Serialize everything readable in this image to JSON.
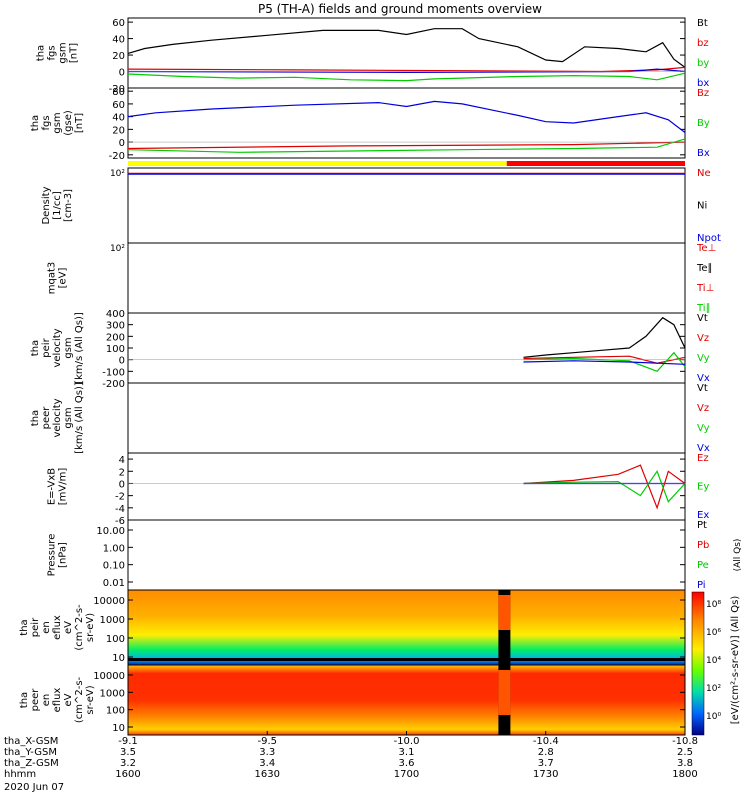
{
  "title": "P5 (TH-A) fields and ground moments overview",
  "colors": {
    "black": "#000000",
    "red": "#e00000",
    "green": "#00cc00",
    "blue": "#0000dd",
    "yellow": "#ffff00",
    "cbar_red": "#ff0000"
  },
  "chart_data": [
    {
      "type": "line",
      "panel": "fgs",
      "ylabel": [
        "tha",
        "fgs",
        "gsm",
        "[nT]"
      ],
      "yticks": [
        60,
        40,
        20,
        0,
        -20
      ],
      "ylim": [
        -20,
        65
      ],
      "legend": [
        {
          "label": "Bt",
          "color": "black"
        },
        {
          "label": "bz",
          "color": "red"
        },
        {
          "label": "by",
          "color": "green"
        },
        {
          "label": "bx",
          "color": "blue"
        }
      ],
      "series": [
        {
          "name": "Bt",
          "color": "black",
          "x": [
            0,
            0.03,
            0.08,
            0.15,
            0.25,
            0.35,
            0.45,
            0.5,
            0.55,
            0.6,
            0.63,
            0.7,
            0.75,
            0.78,
            0.82,
            0.88,
            0.93,
            0.96,
            0.98,
            1.0
          ],
          "values": [
            22,
            28,
            33,
            38,
            44,
            50,
            50,
            45,
            52,
            52,
            40,
            30,
            14,
            12,
            30,
            28,
            24,
            35,
            15,
            5
          ]
        },
        {
          "name": "bz",
          "color": "red",
          "x": [
            0,
            0.3,
            0.6,
            0.85,
            0.95,
            1.0
          ],
          "values": [
            3,
            2,
            1,
            0,
            2,
            5
          ]
        },
        {
          "name": "by",
          "color": "green",
          "x": [
            0,
            0.1,
            0.2,
            0.3,
            0.4,
            0.5,
            0.55,
            0.6,
            0.7,
            0.8,
            0.9,
            0.95,
            1.0
          ],
          "values": [
            -3,
            -6,
            -8,
            -7,
            -10,
            -11,
            -9,
            -8,
            -6,
            -5,
            -6,
            -10,
            -2
          ]
        },
        {
          "name": "bx",
          "color": "blue",
          "x": [
            0,
            0.5,
            0.9,
            0.95,
            1.0
          ],
          "values": [
            0,
            -1,
            0,
            3,
            0
          ]
        }
      ]
    },
    {
      "type": "line",
      "panel": "fgs-gse",
      "ylabel": [
        "tha",
        "fgs",
        "gsm",
        "(gse)",
        "[nT]"
      ],
      "yticks": [
        80,
        60,
        40,
        20,
        0,
        -20
      ],
      "ylim": [
        -25,
        85
      ],
      "legend": [
        {
          "label": "Bz",
          "color": "red"
        },
        {
          "label": "By",
          "color": "green"
        },
        {
          "label": "Bx",
          "color": "blue"
        }
      ],
      "series": [
        {
          "name": "Bx",
          "color": "blue",
          "x": [
            0,
            0.05,
            0.15,
            0.3,
            0.45,
            0.5,
            0.55,
            0.6,
            0.7,
            0.75,
            0.8,
            0.88,
            0.93,
            0.97,
            1.0
          ],
          "values": [
            40,
            46,
            52,
            58,
            62,
            56,
            64,
            60,
            42,
            32,
            30,
            40,
            46,
            35,
            15
          ]
        },
        {
          "name": "Bz",
          "color": "red",
          "x": [
            0,
            0.4,
            0.8,
            1.0
          ],
          "values": [
            -10,
            -6,
            -4,
            0
          ]
        },
        {
          "name": "By",
          "color": "green",
          "x": [
            0,
            0.2,
            0.4,
            0.6,
            0.8,
            0.95,
            1.0
          ],
          "values": [
            -12,
            -16,
            -14,
            -12,
            -10,
            -8,
            5
          ]
        }
      ]
    },
    {
      "type": "line",
      "panel": "density",
      "ylabel": [
        "Density",
        "[1/cc]",
        "[cm-3]"
      ],
      "yticks_top": "10²",
      "legend": [
        {
          "label": "Ne",
          "color": "red"
        },
        {
          "label": "Ni",
          "color": "black"
        },
        {
          "label": "Npot",
          "color": "blue"
        }
      ],
      "series": [
        {
          "name": "Ne",
          "color": "red",
          "x": [
            0,
            0.5,
            1.0
          ],
          "values": [
            0.3,
            0.3,
            0.3
          ]
        },
        {
          "name": "Npot",
          "color": "blue",
          "x": [
            0,
            0.5,
            1.0
          ],
          "values": [
            0.35,
            0.35,
            0.35
          ]
        }
      ]
    },
    {
      "type": "line",
      "panel": "temperature",
      "ylabel": [
        "mqat3",
        "[eV]"
      ],
      "yticks_top": "10²",
      "legend": [
        {
          "label": "Te⊥",
          "color": "red"
        },
        {
          "label": "Te∥",
          "color": "black"
        },
        {
          "label": "Ti⊥",
          "color": "red"
        },
        {
          "label": "Ti∥",
          "color": "green"
        }
      ]
    },
    {
      "type": "line",
      "panel": "ion-velocity",
      "ylabel": [
        "tha",
        "peir",
        "velocity",
        "gsm",
        "[km/s (All Qs)]"
      ],
      "yticks": [
        400,
        300,
        200,
        100,
        0,
        -100,
        -200
      ],
      "ylim": [
        -200,
        400
      ],
      "legend": [
        {
          "label": "Vt",
          "color": "black"
        },
        {
          "label": "Vz",
          "color": "red"
        },
        {
          "label": "Vy",
          "color": "green"
        },
        {
          "label": "Vx",
          "color": "blue"
        }
      ],
      "series": [
        {
          "name": "Vt",
          "color": "black",
          "x": [
            0.71,
            0.75,
            0.8,
            0.85,
            0.9,
            0.93,
            0.96,
            0.98,
            1.0
          ],
          "values": [
            20,
            40,
            60,
            80,
            100,
            200,
            360,
            300,
            100
          ]
        },
        {
          "name": "Vz",
          "color": "red",
          "x": [
            0.71,
            0.8,
            0.9,
            0.95,
            1.0
          ],
          "values": [
            10,
            20,
            30,
            -30,
            20
          ]
        },
        {
          "name": "Vy",
          "color": "green",
          "x": [
            0.71,
            0.8,
            0.9,
            0.95,
            0.98,
            1.0
          ],
          "values": [
            0,
            10,
            -10,
            -100,
            60,
            -60
          ]
        },
        {
          "name": "Vx",
          "color": "blue",
          "x": [
            0.71,
            0.8,
            0.9,
            1.0
          ],
          "values": [
            -20,
            -10,
            -20,
            -40
          ]
        }
      ]
    },
    {
      "type": "line",
      "panel": "electron-velocity",
      "ylabel": [
        "tha",
        "peer",
        "velocity",
        "gsm",
        "[km/s (All Qs)]"
      ],
      "legend": [
        {
          "label": "Vt",
          "color": "black"
        },
        {
          "label": "Vz",
          "color": "red"
        },
        {
          "label": "Vy",
          "color": "green"
        },
        {
          "label": "Vx",
          "color": "blue"
        }
      ]
    },
    {
      "type": "line",
      "panel": "efield",
      "ylabel": [
        "E=-VxB",
        "[mV/m]"
      ],
      "yticks": [
        4,
        2,
        0,
        -2,
        -4,
        -6
      ],
      "ylim": [
        -6,
        5
      ],
      "legend": [
        {
          "label": "Ez",
          "color": "red"
        },
        {
          "label": "Ey",
          "color": "green"
        },
        {
          "label": "Ex",
          "color": "blue"
        }
      ],
      "series": [
        {
          "name": "Ez",
          "color": "red",
          "x": [
            0.71,
            0.8,
            0.88,
            0.92,
            0.95,
            0.97,
            1.0
          ],
          "values": [
            0,
            0.5,
            1.5,
            3,
            -4,
            2,
            0
          ]
        },
        {
          "name": "Ey",
          "color": "green",
          "x": [
            0.71,
            0.8,
            0.88,
            0.92,
            0.95,
            0.97,
            1.0
          ],
          "values": [
            0,
            0.2,
            0.3,
            -2,
            2,
            -3,
            0
          ]
        },
        {
          "name": "Ex",
          "color": "blue",
          "x": [
            0.71,
            0.9,
            1.0
          ],
          "values": [
            0,
            0,
            0
          ]
        }
      ]
    },
    {
      "type": "line",
      "panel": "pressure",
      "ylabel": [
        "Pressure",
        "[nPa]"
      ],
      "yticks": [
        "10.00",
        "1.00",
        "0.10",
        "0.01"
      ],
      "legend": [
        {
          "label": "Pt",
          "color": "black"
        },
        {
          "label": "Pb",
          "color": "red"
        },
        {
          "label": "Pe",
          "color": "green"
        },
        {
          "label": "Pi",
          "color": "blue"
        }
      ],
      "legend_note": "(All Qs)"
    },
    {
      "type": "heatmap",
      "panel": "ion-spectrogram",
      "ylabel": [
        "tha",
        "peir",
        "en",
        "eflux",
        "eV",
        "(cm^2-s-",
        "sr-eV)"
      ],
      "yticks": [
        10000,
        1000,
        100,
        10
      ]
    },
    {
      "type": "heatmap",
      "panel": "electron-spectrogram",
      "ylabel": [
        "tha",
        "peer",
        "en",
        "eflux",
        "eV",
        "(cm^2-s-",
        "sr-eV)"
      ],
      "yticks": [
        10000,
        1000,
        100,
        10
      ]
    }
  ],
  "colorbar": {
    "label": "[eV/(cm²-s-sr-eV)] (All Qs)",
    "ticks": [
      "10⁸",
      "10⁶",
      "10⁴",
      "10²",
      "10⁰"
    ]
  },
  "xaxis": {
    "rows": [
      {
        "label": "tha_X-GSM",
        "values": [
          "-9.1",
          "-9.5",
          "-10.0",
          "-10.4",
          "-10.8"
        ]
      },
      {
        "label": "tha_Y-GSM",
        "values": [
          "3.5",
          "3.3",
          "3.1",
          "2.8",
          "2.5"
        ]
      },
      {
        "label": "tha_Z-GSM",
        "values": [
          "3.2",
          "3.4",
          "3.6",
          "3.7",
          "3.8"
        ]
      },
      {
        "label": "hhmm",
        "values": [
          "1600",
          "1630",
          "1700",
          "1730",
          "1800"
        ]
      }
    ],
    "date": "2020 Jun 07"
  }
}
